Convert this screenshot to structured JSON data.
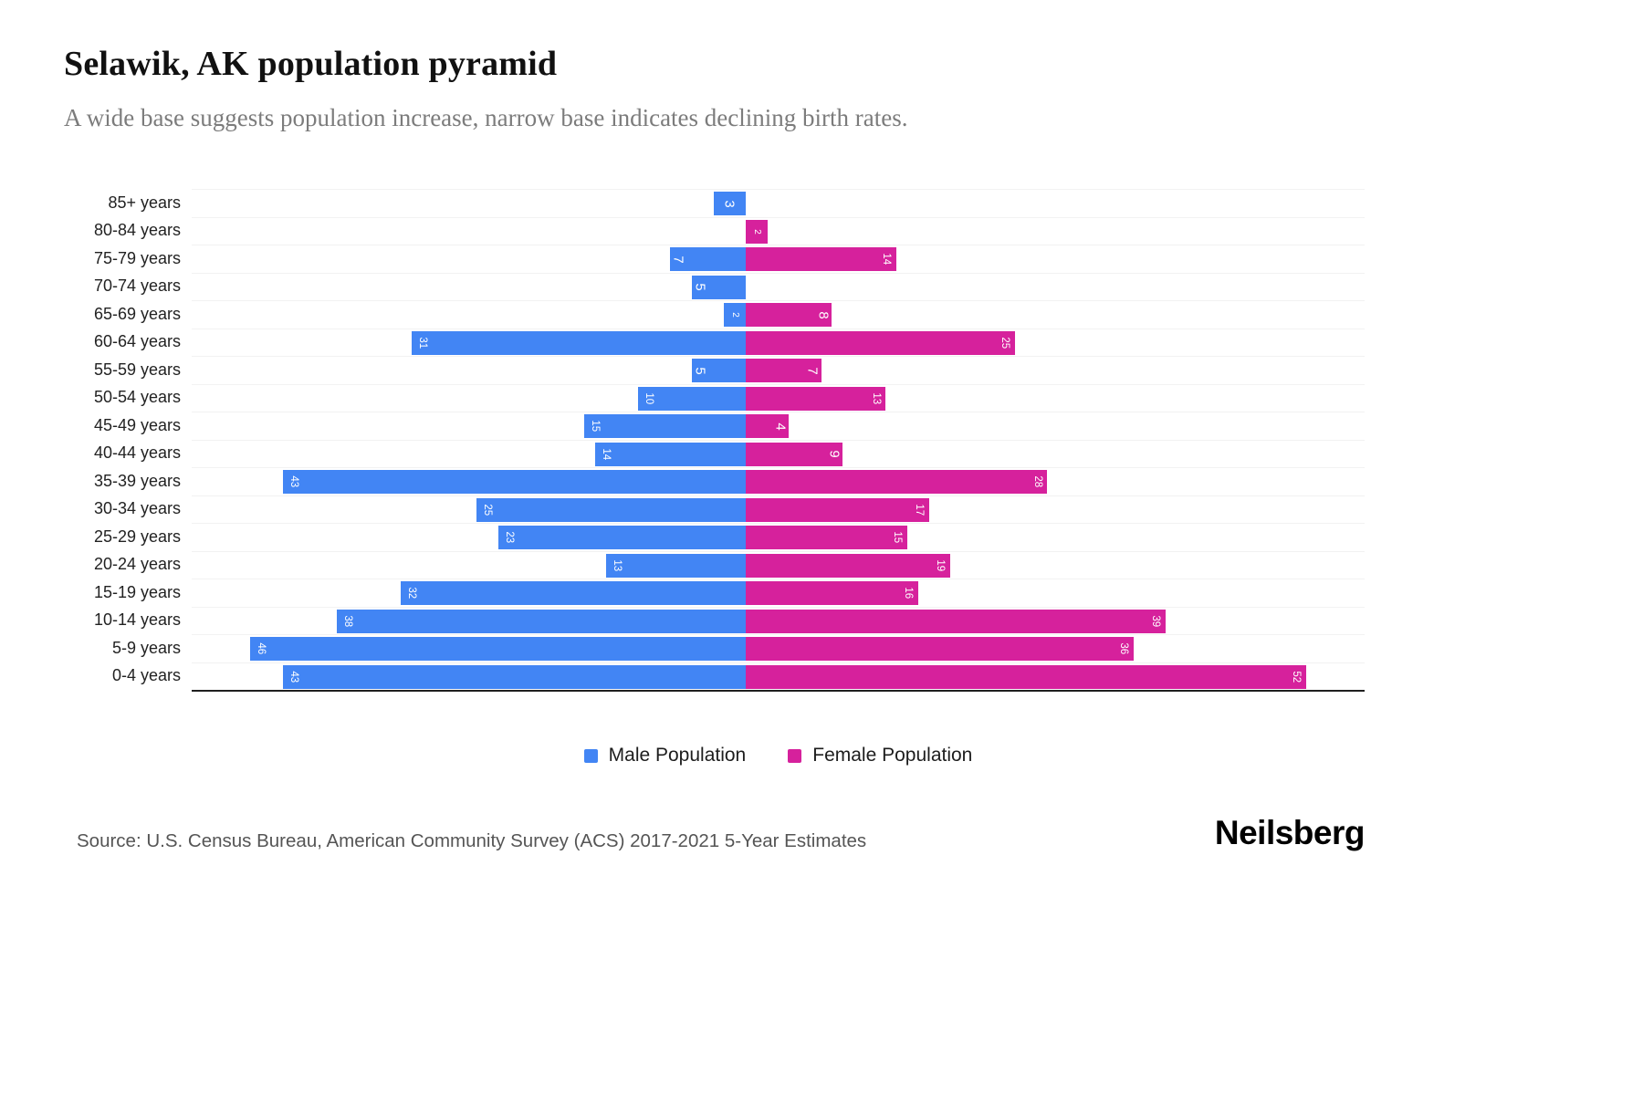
{
  "header": {
    "title": "Selawik, AK population pyramid",
    "subtitle": "A wide base suggests population increase, narrow base indicates declining birth rates."
  },
  "chart_data": {
    "type": "bar",
    "variant": "population-pyramid",
    "title": "Selawik, AK population pyramid",
    "categories": [
      "85+ years",
      "80-84 years",
      "75-79 years",
      "70-74 years",
      "65-69 years",
      "60-64 years",
      "55-59 years",
      "50-54 years",
      "45-49 years",
      "40-44 years",
      "35-39 years",
      "30-34 years",
      "25-29 years",
      "20-24 years",
      "15-19 years",
      "10-14 years",
      "5-9 years",
      "0-4 years"
    ],
    "series": [
      {
        "name": "Male Population",
        "color": "#4285F4",
        "side": "left",
        "values": [
          3,
          0,
          7,
          5,
          2,
          31,
          5,
          10,
          15,
          14,
          43,
          25,
          23,
          13,
          32,
          38,
          46,
          43
        ]
      },
      {
        "name": "Female Population",
        "color": "#D6219C",
        "side": "right",
        "values": [
          0,
          2,
          14,
          0,
          8,
          25,
          7,
          13,
          4,
          9,
          28,
          17,
          15,
          19,
          16,
          39,
          36,
          52
        ]
      }
    ],
    "x_max_each_side": 52,
    "value_labels": "inside-bar-rotated-white",
    "grid": "horizontal-faint",
    "legend_position": "bottom-center"
  },
  "footer": {
    "source": "Source: U.S. Census Bureau, American Community Survey (ACS) 2017-2021 5-Year Estimates",
    "brand": "Neilsberg"
  }
}
